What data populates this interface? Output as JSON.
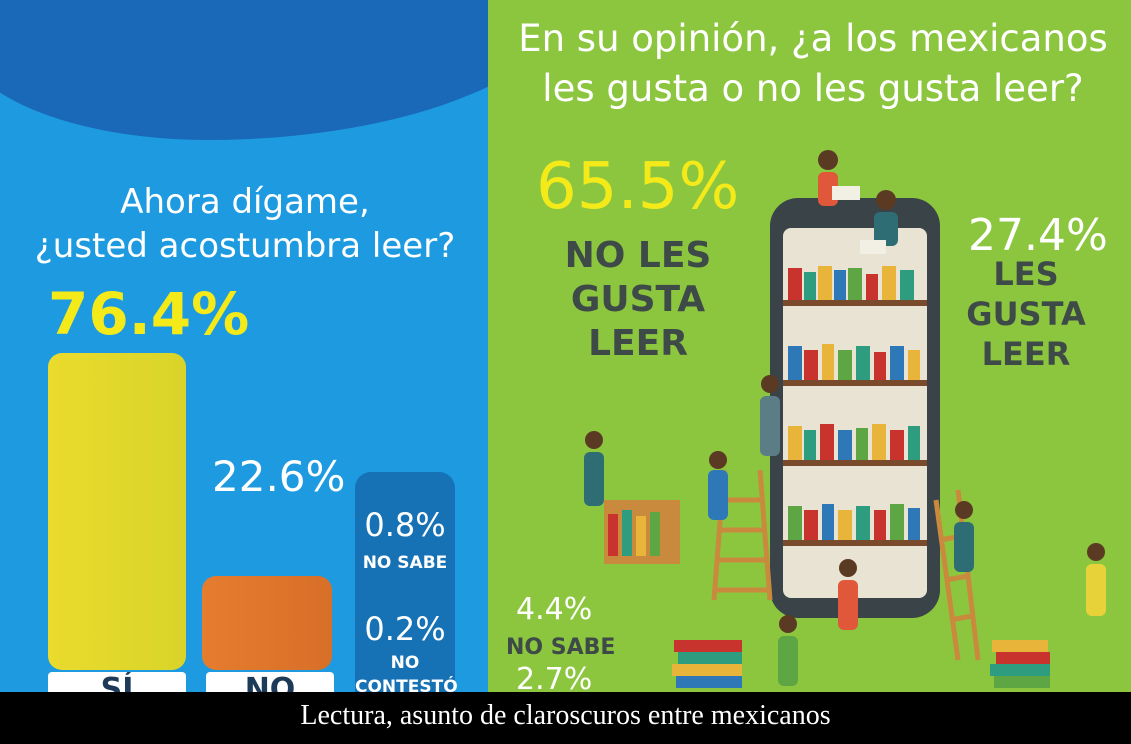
{
  "left_panel": {
    "question_line1": "Ahora dígame,",
    "question_line2": "¿usted acostumbra leer?",
    "bar_si_pct": "76.4%",
    "bar_no_pct": "22.6%",
    "bar_si_label": "SÍ",
    "bar_no_label": "NO",
    "nosabe_pct": "0.8%",
    "nosabe_label": "NO SABE",
    "nocontesto_pct": "0.2%",
    "nocontesto_label_1": "NO",
    "nocontesto_label_2": "CONTESTÓ"
  },
  "right_panel": {
    "question_line1": "En su opinión, ¿a los mexicanos",
    "question_line2": "les gusta o no les gusta leer?",
    "no_les_pct": "65.5%",
    "no_les_label_1": "NO LES",
    "no_les_label_2": "GUSTA LEER",
    "les_pct": "27.4%",
    "les_label_1": "LES GUSTA",
    "les_label_2": "LEER",
    "nosabe_pct": "4.4%",
    "nosabe_label": "NO SABE",
    "other_pct": "2.7%"
  },
  "caption": "Lectura, asunto de claroscuros entre mexicanos",
  "colors": {
    "left_bg": "#1e9be0",
    "left_top": "#1a69b8",
    "right_bg": "#8cc63f",
    "yes_bar": "#e8de2a",
    "no_bar": "#e07a2c",
    "highlight": "#f4ea1a"
  },
  "chart_data": [
    {
      "type": "bar",
      "title": "Ahora dígame, ¿usted acostumbra leer?",
      "categories": [
        "SÍ",
        "NO",
        "NO SABE",
        "NO CONTESTÓ"
      ],
      "values": [
        76.4,
        22.6,
        0.8,
        0.2
      ]
    },
    {
      "type": "pie",
      "title": "En su opinión, ¿a los mexicanos les gusta o no les gusta leer?",
      "categories": [
        "NO LES GUSTA LEER",
        "LES GUSTA LEER",
        "NO SABE",
        ""
      ],
      "values": [
        65.5,
        27.4,
        4.4,
        2.7
      ]
    }
  ]
}
